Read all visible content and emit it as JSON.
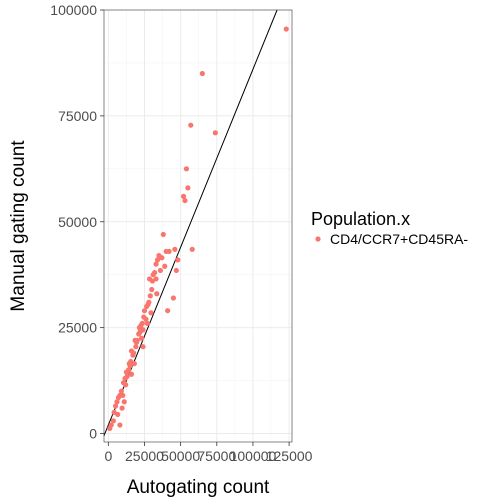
{
  "chart_data": {
    "type": "scatter",
    "xlabel": "Autogating count",
    "ylabel": "Manual gating count",
    "xlim": [
      -3000,
      127000
    ],
    "ylim": [
      -2000,
      100000
    ],
    "x_ticks": [
      0,
      25000,
      50000,
      75000,
      100000,
      125000
    ],
    "x_tick_labels": [
      "0",
      "25000",
      "50000",
      "75000",
      "100000",
      "125000"
    ],
    "y_ticks": [
      0,
      25000,
      50000,
      75000,
      100000
    ],
    "y_tick_labels": [
      "0",
      "25000",
      "50000",
      "75000",
      "100000"
    ],
    "grid": true,
    "legend": {
      "title": "Population.x",
      "placement": "right",
      "entries": [
        {
          "label": "CD4/CCR7+CD45RA-",
          "color": "#F8766D"
        }
      ]
    },
    "reference_line": {
      "slope": 0.84,
      "intercept": 2000
    },
    "series": [
      {
        "name": "CD4/CCR7+CD45RA-",
        "color": "#F8766D",
        "points": [
          [
            1000,
            1200
          ],
          [
            2000,
            2000
          ],
          [
            3500,
            3000
          ],
          [
            4000,
            5000
          ],
          [
            5000,
            6500
          ],
          [
            6000,
            7500
          ],
          [
            7000,
            8500
          ],
          [
            8000,
            2000
          ],
          [
            8000,
            9000
          ],
          [
            9000,
            10000
          ],
          [
            10000,
            9000
          ],
          [
            10500,
            12000
          ],
          [
            11000,
            7500
          ],
          [
            11500,
            13000
          ],
          [
            12000,
            11500
          ],
          [
            12500,
            14500
          ],
          [
            13000,
            13500
          ],
          [
            14000,
            15000
          ],
          [
            15000,
            16000
          ],
          [
            15500,
            17000
          ],
          [
            16000,
            14000
          ],
          [
            17000,
            18500
          ],
          [
            17500,
            19000
          ],
          [
            18000,
            16500
          ],
          [
            19000,
            20500
          ],
          [
            19500,
            21500
          ],
          [
            20000,
            22000
          ],
          [
            21000,
            23500
          ],
          [
            22000,
            24000
          ],
          [
            22500,
            25500
          ],
          [
            23000,
            22500
          ],
          [
            23500,
            26000
          ],
          [
            24000,
            24500
          ],
          [
            24500,
            27500
          ],
          [
            25000,
            29000
          ],
          [
            26000,
            27000
          ],
          [
            26500,
            30000
          ],
          [
            27000,
            26000
          ],
          [
            28000,
            31000
          ],
          [
            29000,
            32500
          ],
          [
            29500,
            28500
          ],
          [
            30000,
            34000
          ],
          [
            30500,
            36000
          ],
          [
            31000,
            37500
          ],
          [
            32000,
            38000
          ],
          [
            33000,
            40000
          ],
          [
            33500,
            33000
          ],
          [
            34000,
            41000
          ],
          [
            35000,
            42000
          ],
          [
            36000,
            38500
          ],
          [
            37000,
            41500
          ],
          [
            38000,
            47000
          ],
          [
            39000,
            39500
          ],
          [
            40000,
            43000
          ],
          [
            42000,
            43000
          ],
          [
            41000,
            29000
          ],
          [
            45000,
            32000
          ],
          [
            46000,
            43500
          ],
          [
            47000,
            38500
          ],
          [
            48000,
            41000
          ],
          [
            52000,
            56000
          ],
          [
            53000,
            55000
          ],
          [
            54000,
            62500
          ],
          [
            55000,
            58000
          ],
          [
            57000,
            72800
          ],
          [
            58000,
            43500
          ],
          [
            65000,
            85000
          ],
          [
            74000,
            71000
          ],
          [
            123000,
            95500
          ],
          [
            6500,
            4500
          ],
          [
            9500,
            6000
          ],
          [
            14500,
            16500
          ],
          [
            16000,
            19500
          ],
          [
            18500,
            22000
          ],
          [
            21500,
            25000
          ],
          [
            24000,
            20500
          ],
          [
            27500,
            30500
          ],
          [
            28500,
            36500
          ],
          [
            33000,
            36500
          ]
        ]
      }
    ]
  }
}
